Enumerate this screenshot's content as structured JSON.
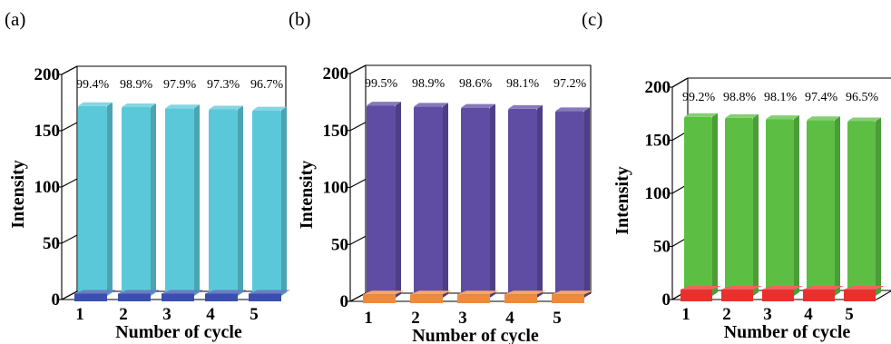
{
  "chart_data": [
    {
      "type": "bar",
      "panel_label": "(a)",
      "categories": [
        "1",
        "2",
        "3",
        "4",
        "5"
      ],
      "values": [
        172,
        171,
        170,
        169,
        168
      ],
      "percent_labels": [
        "99.4%",
        "98.9%",
        "97.9%",
        "97.3%",
        "96.7%"
      ],
      "base_values": [
        2,
        2,
        2,
        2,
        2
      ],
      "xlabel": "Number of cycle",
      "ylabel": "Intensity",
      "yticks": [
        "0",
        "50",
        "100",
        "150",
        "200"
      ],
      "ylim": [
        0,
        200
      ],
      "bar_color": "#5bc8d9",
      "base_color": "#3a4fb0"
    },
    {
      "type": "bar",
      "panel_label": "(b)",
      "categories": [
        "1",
        "2",
        "3",
        "4",
        "5"
      ],
      "values": [
        172,
        171,
        170,
        169,
        167
      ],
      "percent_labels": [
        "99.5%",
        "98.9%",
        "98.6%",
        "98.1%",
        "97.2%"
      ],
      "base_values": [
        3,
        3,
        3,
        3,
        3
      ],
      "xlabel": "Number of cycle",
      "ylabel": "Intensity",
      "yticks": [
        "0",
        "50",
        "100",
        "150",
        "200"
      ],
      "ylim": [
        0,
        200
      ],
      "bar_color": "#5f4ca3",
      "base_color": "#f08a3a"
    },
    {
      "type": "bar",
      "panel_label": "(c)",
      "categories": [
        "1",
        "2",
        "3",
        "4",
        "5"
      ],
      "values": [
        172,
        171,
        170,
        169,
        168
      ],
      "percent_labels": [
        "99.2%",
        "98.8%",
        "98.1%",
        "97.4%",
        "96.5%"
      ],
      "base_values": [
        6,
        6,
        6,
        6,
        6
      ],
      "xlabel": "Number of cycle",
      "ylabel": "Intensity",
      "yticks": [
        "0",
        "50",
        "100",
        "150",
        "200"
      ],
      "ylim": [
        0,
        200
      ],
      "bar_color": "#5cbf44",
      "base_color": "#e8302d"
    }
  ]
}
